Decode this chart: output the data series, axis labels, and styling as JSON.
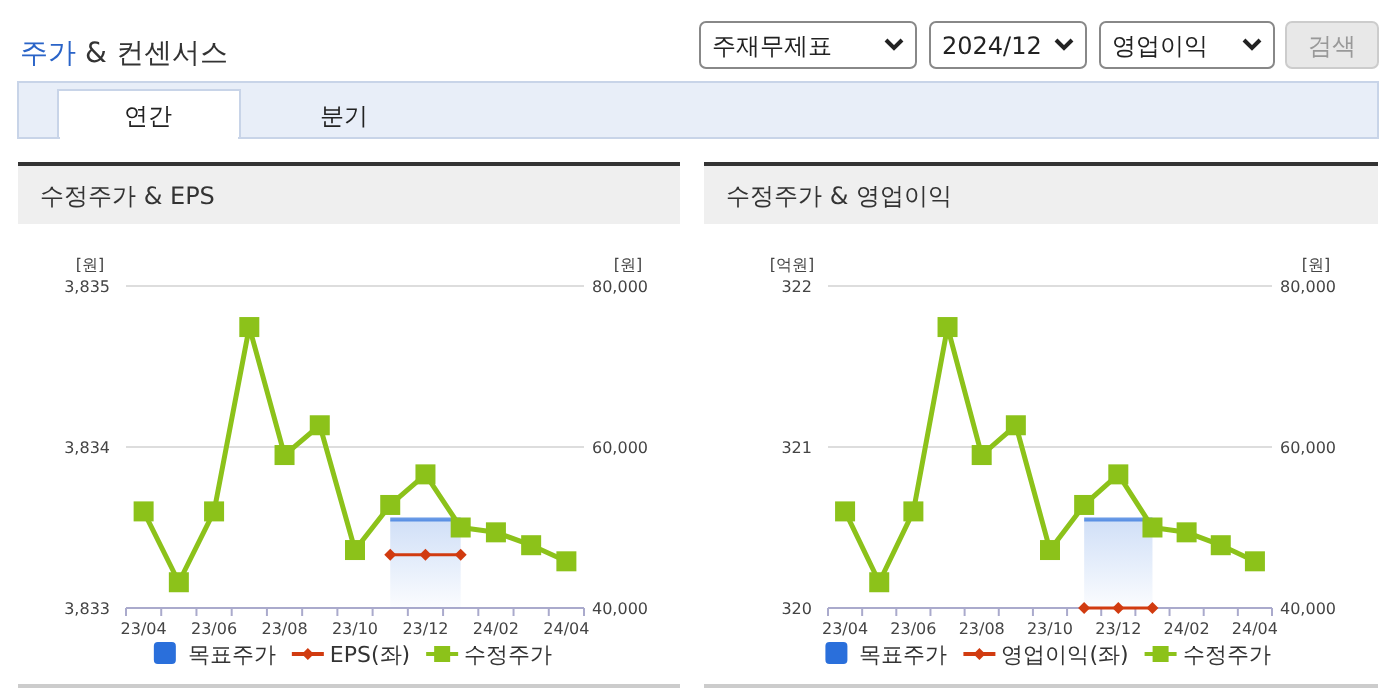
{
  "chart_data": [
    {
      "type": "other",
      "title": "주가 & 컨센서스",
      "annotations": [
        "주재무제표",
        "2024/12",
        "영업이익",
        "검색",
        "연간",
        "분기"
      ]
    },
    {
      "type": "line",
      "title": "수정주가 & EPS",
      "ylabel": "[원]",
      "y2label": "[원]",
      "grid": "y",
      "legend": "bottom",
      "categories": [
        "23/04",
        null,
        "23/06",
        null,
        "23/08",
        null,
        "23/10",
        null,
        "23/12",
        null,
        "24/02",
        null,
        "24/04"
      ],
      "ylim": [
        3833,
        3835
      ],
      "yticks": [
        {
          "value": 3833,
          "label": "3,833"
        },
        {
          "value": 3834,
          "label": "3,834"
        },
        {
          "value": 3835,
          "label": "3,835"
        }
      ],
      "y2lim": [
        40000,
        80000
      ],
      "y2ticks": [
        {
          "value": 40000,
          "label": "40,000"
        },
        {
          "value": 60000,
          "label": "60,000"
        },
        {
          "value": 80000,
          "label": "80,000"
        }
      ],
      "series": [
        {
          "name": "목표주가",
          "type": "area",
          "axis": "y2",
          "color": "#2a6fdb",
          "values": [
            null,
            null,
            null,
            null,
            null,
            null,
            null,
            51000,
            51000,
            51000,
            null,
            null,
            null
          ]
        },
        {
          "name": "EPS(좌)",
          "type": "line",
          "axis": "y",
          "color": "#d13b10",
          "marker": "diamond",
          "values": [
            null,
            null,
            null,
            null,
            null,
            null,
            null,
            3833.33,
            3833.33,
            3833.33,
            null,
            null,
            null
          ]
        },
        {
          "name": "수정주가",
          "type": "line",
          "axis": "y2",
          "color": "#8cc21a",
          "marker": "square",
          "values": [
            52000,
            43200,
            52000,
            74900,
            59000,
            62700,
            47200,
            52800,
            56600,
            50000,
            49400,
            47800,
            45800
          ]
        }
      ]
    },
    {
      "type": "line",
      "title": "수정주가 & 영업이익",
      "ylabel": "[억원]",
      "y2label": "[원]",
      "grid": "y",
      "legend": "bottom",
      "categories": [
        "23/04",
        null,
        "23/06",
        null,
        "23/08",
        null,
        "23/10",
        null,
        "23/12",
        null,
        "24/02",
        null,
        "24/04"
      ],
      "ylim": [
        320,
        322
      ],
      "yticks": [
        320,
        321,
        322
      ],
      "y2lim": [
        40000,
        80000
      ],
      "y2ticks": [
        {
          "value": 40000,
          "label": "40,000"
        },
        {
          "value": 60000,
          "label": "60,000"
        },
        {
          "value": 80000,
          "label": "80,000"
        }
      ],
      "series": [
        {
          "name": "목표주가",
          "type": "area",
          "axis": "y2",
          "color": "#2a6fdb",
          "values": [
            null,
            null,
            null,
            null,
            null,
            null,
            null,
            51000,
            51000,
            51000,
            null,
            null,
            null
          ]
        },
        {
          "name": "영업이익(좌)",
          "type": "line",
          "axis": "y",
          "color": "#d13b10",
          "marker": "diamond",
          "values": [
            null,
            null,
            null,
            null,
            null,
            null,
            null,
            320,
            320,
            320,
            null,
            null,
            null
          ]
        },
        {
          "name": "수정주가",
          "type": "line",
          "axis": "y2",
          "color": "#8cc21a",
          "marker": "square",
          "values": [
            52000,
            43200,
            52000,
            74900,
            59000,
            62700,
            47200,
            52800,
            56600,
            50000,
            49400,
            47800,
            45800
          ]
        }
      ]
    }
  ]
}
